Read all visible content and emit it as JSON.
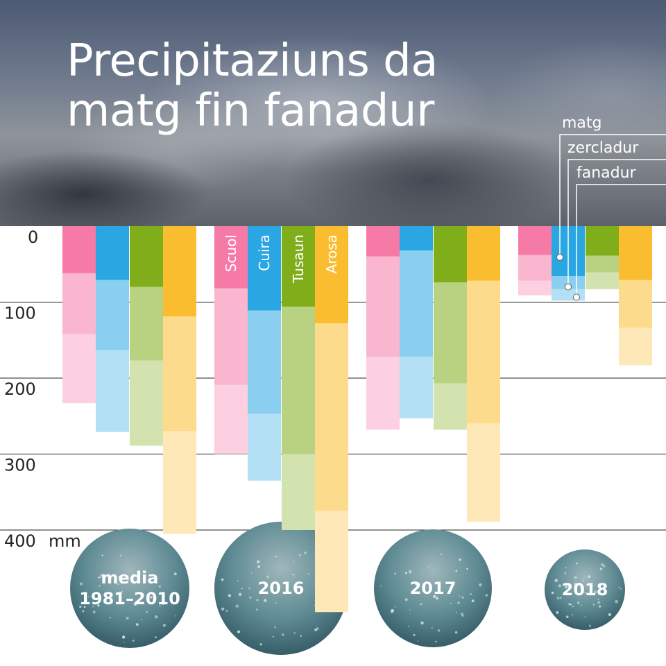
{
  "title": "Precipitaziuns da matg fin fanadur",
  "chart_data": {
    "type": "bar",
    "stacked": true,
    "unit": "mm",
    "ylim": [
      0,
      400
    ],
    "yticks": [
      "0",
      "100",
      "200",
      "300",
      "400"
    ],
    "grid": true,
    "groups": [
      "media\n1981–2010",
      "2016",
      "2017",
      "2018"
    ],
    "stations": [
      "Scuol",
      "Cuira",
      "Tusaun",
      "Arosa"
    ],
    "segments": [
      "matg",
      "zercladur",
      "fanadur"
    ],
    "series": [
      {
        "name": "Scuol",
        "color": "#f57aa5",
        "values": [
          [
            62,
            80,
            91
          ],
          [
            82,
            127,
            91
          ],
          [
            40,
            132,
            96
          ],
          [
            38,
            34,
            19
          ]
        ]
      },
      {
        "name": "Cuira",
        "color": "#2aa7e3",
        "values": [
          [
            71,
            92,
            108
          ],
          [
            111,
            136,
            88
          ],
          [
            32,
            140,
            81
          ],
          [
            66,
            17,
            15
          ]
        ]
      },
      {
        "name": "Tusaun",
        "color": "#7fae1a",
        "values": [
          [
            80,
            97,
            112
          ],
          [
            106,
            194,
            100
          ],
          [
            74,
            133,
            61
          ],
          [
            39,
            22,
            22
          ]
        ]
      },
      {
        "name": "Arosa",
        "color": "#fbbd30",
        "values": [
          [
            119,
            151,
            135
          ],
          [
            128,
            247,
            133
          ],
          [
            72,
            188,
            129
          ],
          [
            71,
            63,
            49
          ]
        ]
      }
    ],
    "legend": [
      "matg",
      "zercladur",
      "fanadur"
    ]
  }
}
